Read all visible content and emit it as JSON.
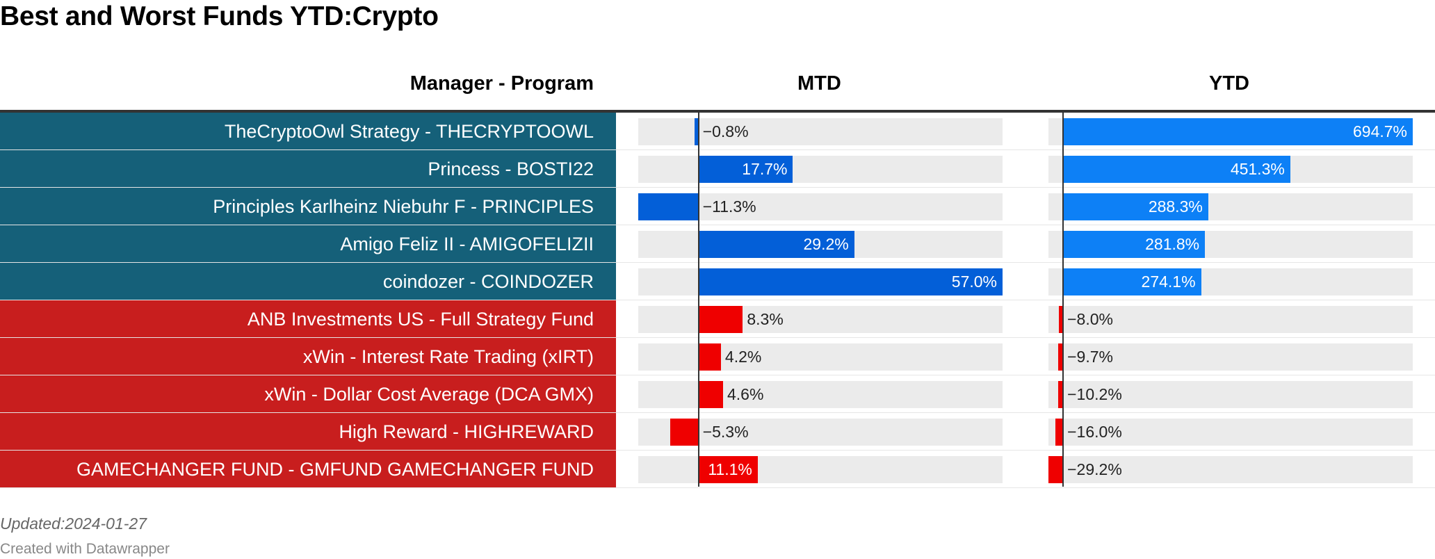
{
  "title": "Best and Worst Funds YTD:Crypto",
  "columns": {
    "manager": "Manager - Program",
    "mtd": "MTD",
    "ytd": "YTD"
  },
  "colors": {
    "best_row_bg": "#156079",
    "worst_row_bg": "#c81e1e",
    "track": "#ebebeb",
    "mtd_best_bar": "#035fd8",
    "ytd_best_bar": "#0d80f6",
    "worst_bar": "#ef0000"
  },
  "chart_data": {
    "type": "bar",
    "categories": [
      "TheCryptoOwl Strategy - THECRYPTOOWL",
      "Princess - BOSTI22",
      "Principles Karlheinz Niebuhr F - PRINCIPLES",
      "Amigo Feliz II - AMIGOFELIZII",
      "coindozer - COINDOZER",
      "ANB Investments US - Full Strategy Fund",
      "xWin - Interest Rate Trading (xIRT)",
      "xWin - Dollar Cost Average (DCA GMX)",
      "High Reward - HIGHREWARD",
      "GAMECHANGER FUND - GMFUND GAMECHANGER FUND"
    ],
    "groups": [
      "best",
      "best",
      "best",
      "best",
      "best",
      "worst",
      "worst",
      "worst",
      "worst",
      "worst"
    ],
    "series": [
      {
        "name": "MTD",
        "values": [
          -0.8,
          17.7,
          -11.3,
          29.2,
          57.0,
          8.3,
          4.2,
          4.6,
          -5.3,
          11.1
        ],
        "labels": [
          "−0.8%",
          "17.7%",
          "−11.3%",
          "29.2%",
          "57.0%",
          "8.3%",
          "4.2%",
          "4.6%",
          "−5.3%",
          "11.1%"
        ],
        "range": [
          -11.3,
          57.0
        ]
      },
      {
        "name": "YTD",
        "values": [
          694.7,
          451.3,
          288.3,
          281.8,
          274.1,
          -8.0,
          -9.7,
          -10.2,
          -16.0,
          -29.2
        ],
        "labels": [
          "694.7%",
          "451.3%",
          "288.3%",
          "281.8%",
          "274.1%",
          "−8.0%",
          "−9.7%",
          "−10.2%",
          "−16.0%",
          "−29.2%"
        ],
        "range": [
          -29.2,
          694.7
        ]
      }
    ]
  },
  "footer": {
    "note": "Updated:2024-01-27",
    "credit": "Created with Datawrapper"
  }
}
